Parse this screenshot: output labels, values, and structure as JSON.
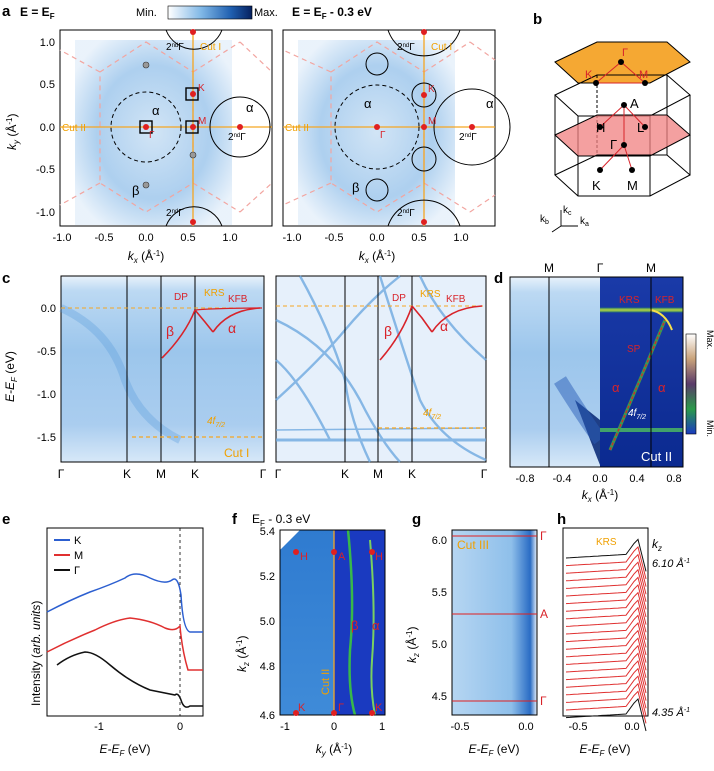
{
  "colors": {
    "arpes_light": "#dcebf8",
    "arpes_mid": "#7fb7e6",
    "arpes_dark": "#1f5fb0",
    "arpes_deep": "#0a2a7a",
    "cut_line": "#f5a623",
    "bz_dash": "#f2a5a0",
    "band_red": "#d8232a",
    "label_orange": "#f0a000",
    "top_face": "#f5a833",
    "mid_face": "#f08080",
    "edc_blue": "#2c5fd0",
    "edc_red": "#e03030",
    "edc_black": "#111111"
  },
  "panel_a": {
    "letter": "a",
    "left_title": "E = E",
    "left_title_sub": "F",
    "right_title": "E = E",
    "right_title_sub": "F",
    "right_title_suffix": " - 0.3 eV",
    "colorbar_min": "Min.",
    "colorbar_max": "Max.",
    "ylabel": "k",
    "ylabel_sub": "y",
    "ylabel_unit": " (Å",
    "ylabel_unit_sup": "-1",
    "ylabel_close": ")",
    "xlabel": "k",
    "xlabel_sub": "x",
    "xlabel_unit": " (Å",
    "xlabel_unit_sup": "-1",
    "xlabel_close": ")",
    "yticks": [
      "1.0",
      "0.5",
      "0.0",
      "-0.5",
      "-1.0"
    ],
    "xticks": [
      "-1.0",
      "-0.5",
      "0.0",
      "0.5",
      "1.0"
    ],
    "cut1": "Cut I",
    "cut2": "Cut II",
    "alpha": "α",
    "beta": "β",
    "gamma": "Γ",
    "K": "K",
    "M": "M",
    "second": "2",
    "second_sup": "nd"
  },
  "panel_b": {
    "letter": "b",
    "labels": [
      "Γ",
      "K",
      "M",
      "A",
      "H",
      "L",
      "Γ",
      "K",
      "M"
    ],
    "axis_kc": "k",
    "axis_kc_sub": "c",
    "axis_kb": "k",
    "axis_kb_sub": "b",
    "axis_ka": "k",
    "axis_ka_sub": "a"
  },
  "panel_c": {
    "letter": "c",
    "ylabel": "E-E",
    "ylabel_sub": "F",
    "ylabel_unit": " (eV)",
    "yticks": [
      "0.0",
      "-0.5",
      "-1.0",
      "-1.5"
    ],
    "left_xticks": [
      "Γ",
      "K",
      "M",
      "K",
      "Γ"
    ],
    "right_xticks": [
      "Γ",
      "K",
      "M",
      "K",
      "Γ"
    ],
    "dp": "DP",
    "krs": "KRS",
    "kfb": "KFB",
    "alpha": "α",
    "beta": "β",
    "f_level": "4f",
    "f_level_sub": "7/2",
    "cut": "Cut I"
  },
  "panel_d": {
    "letter": "d",
    "top_labels": [
      "M",
      "Γ",
      "M"
    ],
    "xticks": [
      "-0.8",
      "-0.4",
      "0.0",
      "0.4",
      "0.8"
    ],
    "xlabel": "k",
    "xlabel_sub": "x",
    "xlabel_unit": " (Å",
    "xlabel_unit_sup": "-1",
    "xlabel_close": ")",
    "krs": "KRS",
    "kfb": "KFB",
    "sp": "SP",
    "alpha": "α",
    "f_level": "4f",
    "f_level_sub": "7/2",
    "cut": "Cut II",
    "bar_max": "Max.",
    "bar_min": "Min."
  },
  "panel_e": {
    "letter": "e",
    "legend": [
      "K",
      "M",
      "Γ"
    ],
    "ylabel_a": "Intensity (",
    "ylabel_b": "arb. units",
    "ylabel_c": ")",
    "xlabel": "E-E",
    "xlabel_sub": "F",
    "xlabel_unit": " (eV)",
    "xticks": [
      "-1",
      "0"
    ]
  },
  "panel_f": {
    "letter": "f",
    "title": "E",
    "title_sub": "F",
    "title_suffix": " - 0.3 eV",
    "ylabel": "k",
    "ylabel_sub": "z",
    "ylabel_unit": " (Å",
    "ylabel_unit_sup": "-1",
    "ylabel_close": ")",
    "yticks": [
      "5.4",
      "5.2",
      "5.0",
      "4.8",
      "4.6"
    ],
    "xticks": [
      "-1",
      "0",
      "1"
    ],
    "xlabel": "k",
    "xlabel_sub": "y",
    "xlabel_unit": " (Å",
    "xlabel_unit_sup": "-1",
    "xlabel_close": ")",
    "H": "H",
    "A": "A",
    "K": "K",
    "gamma": "Γ",
    "beta": "β",
    "alpha": "α",
    "cut": "Cut II"
  },
  "panel_g": {
    "letter": "g",
    "ylabel": "k",
    "ylabel_sub": "z",
    "ylabel_unit": " (Å",
    "ylabel_unit_sup": "-1",
    "ylabel_close": ")",
    "yticks": [
      "6.0",
      "5.5",
      "5.0",
      "4.5"
    ],
    "xticks": [
      "-0.5",
      "0.0"
    ],
    "xlabel": "E-E",
    "xlabel_sub": "F",
    "xlabel_unit": " (eV)",
    "cut": "Cut III",
    "right_labels": [
      "Γ",
      "A",
      "Γ"
    ]
  },
  "panel_h": {
    "letter": "h",
    "krs": "KRS",
    "kz": "k",
    "kz_sub": "z",
    "kz_top": "6.10 Å",
    "kz_top_sup": "-1",
    "kz_bottom": "4.35 Å",
    "kz_bottom_sup": "-1",
    "xticks": [
      "-0.5",
      "0.0"
    ],
    "xlabel": "E-E",
    "xlabel_sub": "F",
    "xlabel_unit": " (eV)"
  }
}
